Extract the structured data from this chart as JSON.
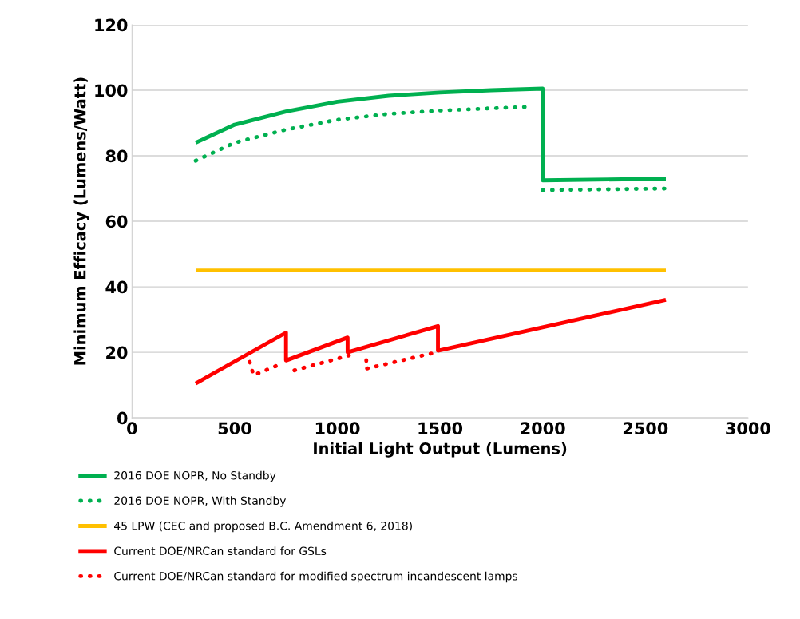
{
  "chart_data": {
    "type": "line",
    "xlabel": "Initial Light Output (Lumens)",
    "ylabel": "Minimum Efficacy (Lumens/Watt)",
    "xlim": [
      0,
      3000
    ],
    "xticks": [
      0,
      500,
      1000,
      1500,
      2000,
      2500,
      3000
    ],
    "ylim": [
      0,
      120
    ],
    "yticks": [
      0,
      20,
      40,
      60,
      80,
      100,
      120
    ],
    "grid": "y",
    "legend": "bottom",
    "marker": "none",
    "series": [
      {
        "name": "2016 DOE NOPR, No Standby",
        "color": "#00b050",
        "line_style": "solid",
        "x": [
          310,
          500,
          750,
          1000,
          1250,
          1500,
          1750,
          2000,
          2000,
          2600
        ],
        "values": [
          84,
          89.5,
          93.5,
          96.5,
          98.3,
          99.3,
          100,
          100.5,
          72.5,
          73
        ]
      },
      {
        "name": "2016 DOE NOPR, With Standby",
        "color": "#00b050",
        "line_style": "dotted",
        "x": [
          310,
          500,
          750,
          1000,
          1250,
          1500,
          1750,
          1950,
          1975,
          2000,
          2600
        ],
        "values": [
          78.5,
          84,
          88,
          91,
          92.8,
          93.8,
          94.5,
          95,
          null,
          69.5,
          70
        ]
      },
      {
        "name": "45 LPW (CEC and proposed B.C. Amendment 6, 2018)",
        "color": "#ffc000",
        "line_style": "solid",
        "x": [
          310,
          2600
        ],
        "values": [
          45,
          45
        ]
      },
      {
        "name": "Current DOE/NRCan standard for GSLs",
        "color": "#ff0000",
        "line_style": "solid",
        "x": [
          310,
          750,
          750,
          1050,
          1050,
          1490,
          1490,
          2600
        ],
        "values": [
          10.5,
          26,
          17.5,
          24.5,
          20,
          28,
          20.5,
          36
        ]
      },
      {
        "name": "Current DOE/NRCan standard for modified spectrum incandescent lamps",
        "color": "#ff0000",
        "line_style": "dotted",
        "x": [
          573,
          592,
          732,
          760,
          791,
          1056,
          1100,
          1141,
          1141,
          1469
        ],
        "values": [
          17.1,
          13,
          16.6,
          null,
          14.5,
          19,
          null,
          17.6,
          15,
          19.8
        ]
      }
    ]
  }
}
